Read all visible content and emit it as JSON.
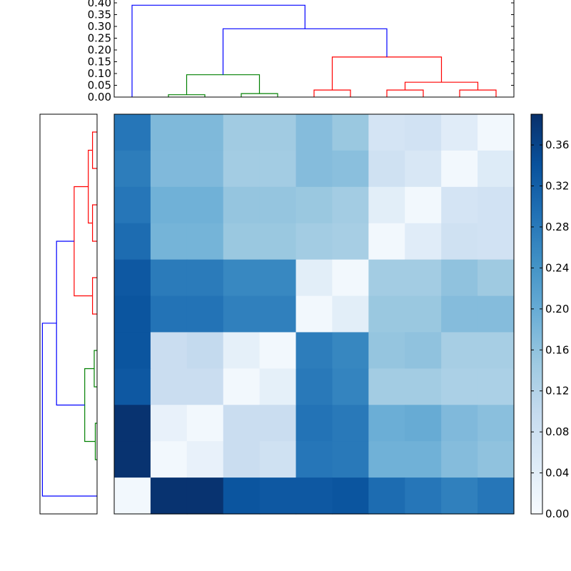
{
  "chart_data": {
    "type": "heatmap",
    "title": "",
    "colormap": "Blues",
    "matrix": [
      [
        0.285,
        0.176,
        0.176,
        0.143,
        0.143,
        0.17,
        0.15,
        0.07,
        0.075,
        0.045,
        0.01
      ],
      [
        0.275,
        0.175,
        0.175,
        0.14,
        0.14,
        0.17,
        0.165,
        0.08,
        0.06,
        0.01,
        0.05
      ],
      [
        0.285,
        0.19,
        0.19,
        0.155,
        0.155,
        0.15,
        0.14,
        0.04,
        0.01,
        0.07,
        0.075
      ],
      [
        0.3,
        0.185,
        0.185,
        0.15,
        0.15,
        0.14,
        0.135,
        0.01,
        0.045,
        0.08,
        0.075
      ],
      [
        0.33,
        0.278,
        0.278,
        0.258,
        0.258,
        0.04,
        0.01,
        0.14,
        0.14,
        0.16,
        0.145
      ],
      [
        0.335,
        0.29,
        0.29,
        0.27,
        0.27,
        0.01,
        0.04,
        0.15,
        0.15,
        0.17,
        0.17
      ],
      [
        0.335,
        0.09,
        0.1,
        0.035,
        0.01,
        0.275,
        0.26,
        0.155,
        0.16,
        0.135,
        0.135
      ],
      [
        0.33,
        0.09,
        0.09,
        0.01,
        0.035,
        0.28,
        0.265,
        0.14,
        0.14,
        0.13,
        0.13
      ],
      [
        0.385,
        0.03,
        0.01,
        0.09,
        0.09,
        0.29,
        0.28,
        0.195,
        0.2,
        0.175,
        0.165
      ],
      [
        0.385,
        0.01,
        0.03,
        0.09,
        0.08,
        0.285,
        0.28,
        0.19,
        0.19,
        0.17,
        0.16
      ],
      [
        0.01,
        0.385,
        0.385,
        0.335,
        0.33,
        0.33,
        0.335,
        0.3,
        0.285,
        0.27,
        0.285
      ]
    ],
    "colorbar": {
      "range": [
        0.0,
        0.39
      ],
      "ticks": [
        "0.00",
        "0.04",
        "0.08",
        "0.12",
        "0.16",
        "0.20",
        "0.24",
        "0.28",
        "0.32",
        "0.36"
      ]
    },
    "top_dendrogram": {
      "ylim": [
        0.0,
        0.4
      ],
      "ticks": [
        "0.00",
        "0.05",
        "0.10",
        "0.15",
        "0.20",
        "0.25",
        "0.30",
        "0.35",
        "0.40"
      ],
      "links": [
        {
          "x": [
            1,
            1,
            2,
            2
          ],
          "y": [
            0.0,
            0.01,
            0.01,
            0.0
          ],
          "color": "#008000"
        },
        {
          "x": [
            3,
            3,
            4,
            4
          ],
          "y": [
            0.0,
            0.015,
            0.015,
            0.0
          ],
          "color": "#008000"
        },
        {
          "x": [
            1.5,
            1.5,
            3.5,
            3.5
          ],
          "y": [
            0.01,
            0.095,
            0.095,
            0.015
          ],
          "color": "#008000"
        },
        {
          "x": [
            5,
            5,
            6,
            6
          ],
          "y": [
            0.0,
            0.03,
            0.03,
            0.0
          ],
          "color": "#ff0000"
        },
        {
          "x": [
            7,
            7,
            8,
            8
          ],
          "y": [
            0.0,
            0.03,
            0.03,
            0.0
          ],
          "color": "#ff0000"
        },
        {
          "x": [
            9,
            9,
            10,
            10
          ],
          "y": [
            0.0,
            0.03,
            0.03,
            0.0
          ],
          "color": "#ff0000"
        },
        {
          "x": [
            7.5,
            7.5,
            9.5,
            9.5
          ],
          "y": [
            0.03,
            0.063,
            0.063,
            0.03
          ],
          "color": "#ff0000"
        },
        {
          "x": [
            5.5,
            5.5,
            8.5,
            8.5
          ],
          "y": [
            0.03,
            0.17,
            0.17,
            0.063
          ],
          "color": "#ff0000"
        },
        {
          "x": [
            2.5,
            2.5,
            7,
            7
          ],
          "y": [
            0.095,
            0.29,
            0.29,
            0.17
          ],
          "color": "#0000ff"
        },
        {
          "x": [
            0,
            0,
            4.75,
            4.75
          ],
          "y": [
            0.0,
            0.39,
            0.39,
            0.29
          ],
          "color": "#0000ff"
        }
      ]
    },
    "left_dendrogram": {
      "links": [
        {
          "r": [
            0,
            0,
            1,
            1
          ],
          "h": [
            0.0,
            0.013,
            0.013,
            0.0
          ],
          "color": "#ff0000"
        },
        {
          "r": [
            2,
            2,
            3,
            3
          ],
          "h": [
            0.0,
            0.013,
            0.013,
            0.0
          ],
          "color": "#ff0000"
        },
        {
          "r": [
            0.5,
            0.5,
            2.5,
            2.5
          ],
          "h": [
            0.013,
            0.025,
            0.025,
            0.013
          ],
          "color": "#ff0000"
        },
        {
          "r": [
            4,
            4,
            5,
            5
          ],
          "h": [
            0.0,
            0.013,
            0.013,
            0.0
          ],
          "color": "#ff0000"
        },
        {
          "r": [
            1.5,
            1.5,
            4.5,
            4.5
          ],
          "h": [
            0.025,
            0.065,
            0.065,
            0.013
          ],
          "color": "#ff0000"
        },
        {
          "r": [
            6,
            6,
            7,
            7
          ],
          "h": [
            0.0,
            0.008,
            0.008,
            0.0
          ],
          "color": "#008000"
        },
        {
          "r": [
            8,
            8,
            9,
            9
          ],
          "h": [
            0.0,
            0.005,
            0.005,
            0.0
          ],
          "color": "#008000"
        },
        {
          "r": [
            6.5,
            6.5,
            8.5,
            8.5
          ],
          "h": [
            0.008,
            0.035,
            0.035,
            0.005
          ],
          "color": "#008000"
        },
        {
          "r": [
            3,
            3,
            7.5,
            7.5
          ],
          "h": [
            0.065,
            0.115,
            0.115,
            0.035
          ],
          "color": "#0000ff"
        },
        {
          "r": [
            5.25,
            5.25,
            10,
            10
          ],
          "h": [
            0.115,
            0.155,
            0.155,
            0.0
          ],
          "color": "#0000ff"
        }
      ]
    },
    "grid": false
  }
}
